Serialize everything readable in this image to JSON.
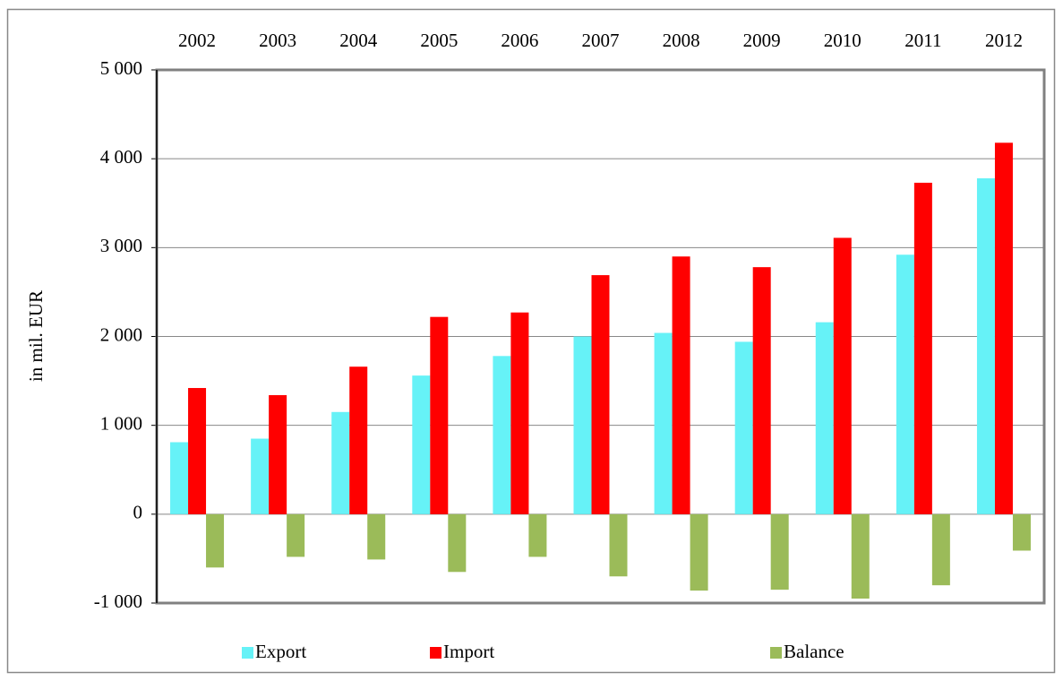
{
  "chart_data": {
    "type": "bar",
    "y_label": "in mil. EUR",
    "categories": [
      "2002",
      "2003",
      "2004",
      "2005",
      "2006",
      "2007",
      "2008",
      "2009",
      "2010",
      "2011",
      "2012"
    ],
    "series": [
      {
        "name": "Export",
        "color": "#66f2f7",
        "values": [
          810,
          850,
          1150,
          1560,
          1780,
          2000,
          2040,
          1940,
          2160,
          2920,
          3780
        ]
      },
      {
        "name": "Import",
        "color": "#ff0000",
        "values": [
          1420,
          1340,
          1660,
          2220,
          2270,
          2690,
          2900,
          2780,
          3110,
          3730,
          4180
        ]
      },
      {
        "name": "Balance",
        "color": "#9bbb59",
        "values": [
          -600,
          -480,
          -510,
          -650,
          -480,
          -700,
          -860,
          -850,
          -950,
          -800,
          -410
        ]
      }
    ],
    "ylim": [
      -1000,
      5000
    ],
    "yticks": [
      {
        "value": -1000,
        "label": "-1 000"
      },
      0,
      {
        "value": 1000,
        "label": "1 000"
      },
      {
        "value": 2000,
        "label": "2 000"
      },
      {
        "value": 3000,
        "label": "3 000"
      },
      {
        "value": 4000,
        "label": "4 000"
      },
      {
        "value": 5000,
        "label": "5 000"
      }
    ],
    "grid": true,
    "legend": "bottom"
  }
}
